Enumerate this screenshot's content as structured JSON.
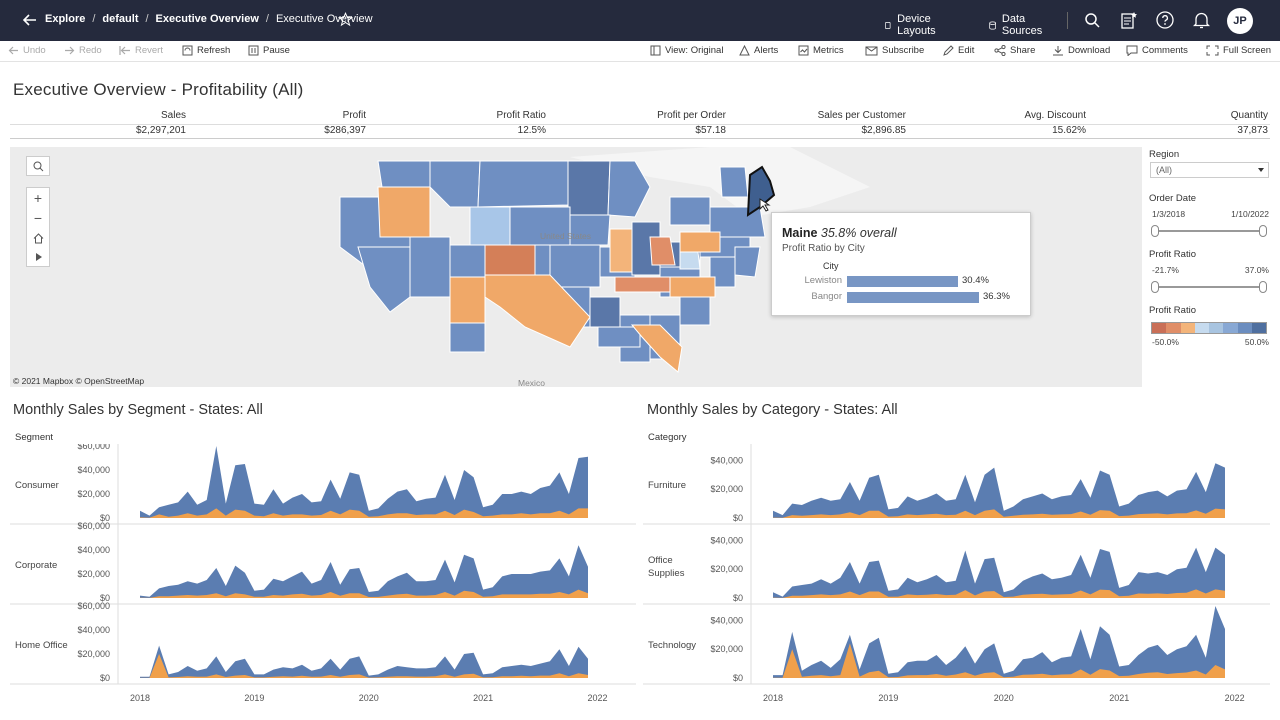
{
  "breadcrumb": {
    "explore": "Explore",
    "project": "default",
    "workbook": "Executive Overview",
    "view": "Executive Overview"
  },
  "header": {
    "device_layouts": "Device Layouts",
    "data_sources": "Data Sources",
    "avatar_initials": "JP"
  },
  "toolbar": {
    "undo": "Undo",
    "redo": "Redo",
    "revert": "Revert",
    "refresh": "Refresh",
    "pause": "Pause",
    "view_original": "View: Original",
    "alerts": "Alerts",
    "metrics": "Metrics",
    "subscribe": "Subscribe",
    "edit": "Edit",
    "share": "Share",
    "download": "Download",
    "comments": "Comments",
    "full_screen": "Full Screen"
  },
  "page_title": "Executive Overview - Profitability (All)",
  "kpis": [
    {
      "label": "Sales",
      "value": "$2,297,201"
    },
    {
      "label": "Profit",
      "value": "$286,397"
    },
    {
      "label": "Profit Ratio",
      "value": "12.5%"
    },
    {
      "label": "Profit per Order",
      "value": "$57.18"
    },
    {
      "label": "Sales per Customer",
      "value": "$2,896.85"
    },
    {
      "label": "Avg. Discount",
      "value": "15.62%"
    },
    {
      "label": "Quantity",
      "value": "37,873"
    }
  ],
  "map": {
    "attribution": "© 2021 Mapbox  © OpenStreetMap",
    "country_label": "United States",
    "mexico_label": "Mexico",
    "tooltip": {
      "state": "Maine",
      "overall": "35.8% overall",
      "subtitle": "Profit Ratio by City",
      "column_header": "City",
      "rows": [
        {
          "city": "Lewiston",
          "value": "30.4%",
          "ratio": 30.4
        },
        {
          "city": "Bangor",
          "value": "36.3%",
          "ratio": 36.3
        }
      ]
    }
  },
  "filters": {
    "region_label": "Region",
    "region_value": "(All)",
    "order_date_label": "Order Date",
    "order_date_min": "1/3/2018",
    "order_date_max": "1/10/2022",
    "profit_ratio_label": "Profit Ratio",
    "profit_ratio_min": "-21.7%",
    "profit_ratio_max": "37.0%",
    "legend_label": "Profit Ratio",
    "legend_min": "-50.0%",
    "legend_max": "50.0%",
    "legend_colors": [
      "#c96f57",
      "#e08e68",
      "#f3b47a",
      "#c6dbef",
      "#a8c4e0",
      "#88a8d4",
      "#6b8dbf",
      "#4f6f9f"
    ]
  },
  "colors": {
    "blue": "#5b7db1",
    "orange": "#f0a04b",
    "accent": "#252a3d"
  },
  "segment_chart": {
    "title": "Monthly Sales by Segment - States: All",
    "header": "Segment",
    "rows": [
      "Consumer",
      "Corporate",
      "Home Office"
    ],
    "y_ticks": [
      "$60,000",
      "$40,000",
      "$20,000",
      "$0"
    ]
  },
  "category_chart": {
    "title": "Monthly Sales by Category - States: All",
    "header": "Category",
    "rows": [
      "Furniture",
      "Office Supplies",
      "Technology"
    ],
    "y_ticks": [
      "$40,000",
      "$20,000",
      "$0"
    ]
  },
  "x_axis": [
    "2018",
    "2019",
    "2020",
    "2021",
    "2022"
  ],
  "chart_data": [
    {
      "type": "area",
      "title": "Monthly Sales by Segment - States: All",
      "x": [
        "2018-01",
        "2018-02",
        "2018-03",
        "2018-04",
        "2018-05",
        "2018-06",
        "2018-07",
        "2018-08",
        "2018-09",
        "2018-10",
        "2018-11",
        "2018-12",
        "2019-01",
        "2019-02",
        "2019-03",
        "2019-04",
        "2019-05",
        "2019-06",
        "2019-07",
        "2019-08",
        "2019-09",
        "2019-10",
        "2019-11",
        "2019-12",
        "2020-01",
        "2020-02",
        "2020-03",
        "2020-04",
        "2020-05",
        "2020-06",
        "2020-07",
        "2020-08",
        "2020-09",
        "2020-10",
        "2020-11",
        "2020-12",
        "2021-01",
        "2021-02",
        "2021-03",
        "2021-04",
        "2021-05",
        "2021-06",
        "2021-07",
        "2021-08",
        "2021-09",
        "2021-10",
        "2021-11",
        "2021-12"
      ],
      "ylim": [
        0,
        60000
      ],
      "panels": [
        {
          "name": "Consumer",
          "series": [
            {
              "name": "Sales",
              "values": [
                6000,
                2000,
                9000,
                11000,
                13000,
                22000,
                11000,
                15000,
                62000,
                12000,
                44000,
                45000,
                12000,
                11000,
                24000,
                12000,
                17000,
                20000,
                13000,
                14000,
                32000,
                16000,
                38000,
                36000,
                6000,
                8000,
                16000,
                22000,
                24000,
                14000,
                16000,
                17000,
                36000,
                15000,
                40000,
                34000,
                9000,
                11000,
                20000,
                20000,
                22000,
                20000,
                25000,
                27000,
                38000,
                20000,
                50000,
                51000
              ]
            },
            {
              "name": "Profit",
              "values": [
                500,
                200,
                3000,
                1000,
                2000,
                4000,
                2000,
                3000,
                8000,
                2000,
                7000,
                6000,
                2000,
                1500,
                4000,
                2000,
                3000,
                3000,
                2000,
                2500,
                6000,
                3000,
                7000,
                6000,
                1000,
                1500,
                3000,
                4000,
                4000,
                2500,
                3000,
                3000,
                6000,
                2500,
                7000,
                5000,
                1500,
                2000,
                3000,
                3000,
                4000,
                3000,
                4000,
                4000,
                6000,
                3000,
                8000,
                8000
              ]
            }
          ]
        },
        {
          "name": "Corporate",
          "series": [
            {
              "name": "Sales",
              "values": [
                2000,
                1000,
                8000,
                10000,
                11000,
                14000,
                12000,
                15000,
                25000,
                10000,
                27000,
                21000,
                6000,
                7000,
                16000,
                14000,
                18000,
                22000,
                12000,
                15000,
                30000,
                11000,
                24000,
                25000,
                5000,
                6000,
                14000,
                18000,
                21000,
                14000,
                14000,
                15000,
                32000,
                13000,
                36000,
                33000,
                7000,
                9000,
                18000,
                20000,
                20000,
                20000,
                22000,
                23000,
                33000,
                18000,
                44000,
                26000
              ]
            },
            {
              "name": "Profit",
              "values": [
                200,
                100,
                1500,
                1500,
                2000,
                2500,
                2000,
                2500,
                4000,
                1500,
                4000,
                3000,
                1000,
                1000,
                2500,
                2000,
                3000,
                3500,
                2000,
                2500,
                5000,
                1800,
                4000,
                4000,
                800,
                900,
                2000,
                3000,
                3500,
                2000,
                2000,
                2500,
                5000,
                2000,
                6000,
                5000,
                1000,
                1500,
                3000,
                3000,
                3000,
                3000,
                3500,
                3500,
                5000,
                3000,
                7000,
                4000
              ]
            }
          ]
        },
        {
          "name": "Home Office",
          "series": [
            {
              "name": "Sales",
              "values": [
                1000,
                1000,
                27000,
                3000,
                5000,
                10000,
                6000,
                8000,
                18000,
                5000,
                14000,
                16000,
                3000,
                3000,
                7000,
                9000,
                8000,
                11000,
                6000,
                8000,
                16000,
                7000,
                16000,
                18000,
                2000,
                3000,
                7000,
                10000,
                9000,
                8000,
                8000,
                9000,
                18000,
                7000,
                20000,
                21000,
                3000,
                4000,
                9000,
                10000,
                11000,
                10000,
                12000,
                14000,
                24000,
                10000,
                26000,
                16000
              ]
            },
            {
              "name": "Profit",
              "values": [
                100,
                100,
                20000,
                500,
                800,
                1500,
                1000,
                1200,
                3000,
                800,
                2000,
                2500,
                500,
                500,
                1000,
                1500,
                1200,
                1800,
                1000,
                1200,
                2500,
                1000,
                2500,
                3000,
                300,
                500,
                1000,
                1500,
                1500,
                1200,
                1200,
                1500,
                3000,
                1000,
                3000,
                3500,
                500,
                600,
                1500,
                1500,
                1800,
                1500,
                2000,
                2000,
                4000,
                1500,
                4000,
                2500
              ]
            }
          ]
        }
      ]
    },
    {
      "type": "area",
      "title": "Monthly Sales by Category - States: All",
      "x": [
        "2018-01",
        "2018-02",
        "2018-03",
        "2018-04",
        "2018-05",
        "2018-06",
        "2018-07",
        "2018-08",
        "2018-09",
        "2018-10",
        "2018-11",
        "2018-12",
        "2019-01",
        "2019-02",
        "2019-03",
        "2019-04",
        "2019-05",
        "2019-06",
        "2019-07",
        "2019-08",
        "2019-09",
        "2019-10",
        "2019-11",
        "2019-12",
        "2020-01",
        "2020-02",
        "2020-03",
        "2020-04",
        "2020-05",
        "2020-06",
        "2020-07",
        "2020-08",
        "2020-09",
        "2020-10",
        "2020-11",
        "2020-12",
        "2021-01",
        "2021-02",
        "2021-03",
        "2021-04",
        "2021-05",
        "2021-06",
        "2021-07",
        "2021-08",
        "2021-09",
        "2021-10",
        "2021-11",
        "2021-12"
      ],
      "ylim": [
        0,
        50000
      ],
      "panels": [
        {
          "name": "Furniture",
          "series": [
            {
              "name": "Sales",
              "values": [
                5000,
                2000,
                10000,
                9000,
                12000,
                14000,
                12000,
                13000,
                25000,
                12000,
                28000,
                30000,
                6000,
                7000,
                15000,
                12000,
                14000,
                17000,
                12000,
                13000,
                30000,
                11000,
                30000,
                35000,
                5000,
                8000,
                13000,
                15000,
                17000,
                13000,
                15000,
                16000,
                27000,
                14000,
                33000,
                30000,
                8000,
                10000,
                16000,
                18000,
                19000,
                15000,
                19000,
                20000,
                32000,
                18000,
                38000,
                35000
              ]
            },
            {
              "name": "Profit",
              "values": [
                300,
                200,
                2000,
                1500,
                2000,
                2500,
                2000,
                2500,
                4000,
                2000,
                5000,
                5000,
                1000,
                1200,
                2500,
                2000,
                2500,
                3000,
                2000,
                2200,
                5000,
                2000,
                5000,
                6000,
                800,
                1500,
                2200,
                2500,
                3000,
                2200,
                2500,
                2700,
                4500,
                2300,
                5500,
                5000,
                1300,
                1700,
                2700,
                3000,
                3200,
                2500,
                3200,
                3300,
                5300,
                3000,
                6500,
                6000
              ]
            }
          ]
        },
        {
          "name": "Office Supplies",
          "series": [
            {
              "name": "Sales",
              "values": [
                4000,
                1000,
                8000,
                9000,
                10000,
                13000,
                10000,
                14000,
                25000,
                10000,
                25000,
                26000,
                5000,
                6000,
                14000,
                11000,
                13000,
                16000,
                11000,
                12000,
                33000,
                10000,
                27000,
                28000,
                4000,
                6000,
                12000,
                15000,
                17000,
                13000,
                14000,
                16000,
                30000,
                14000,
                34000,
                32000,
                7000,
                9000,
                18000,
                17000,
                18000,
                16000,
                20000,
                21000,
                35000,
                18000,
                35000,
                30000
              ]
            },
            {
              "name": "Profit",
              "values": [
                300,
                100,
                1500,
                1500,
                2000,
                2500,
                2000,
                2500,
                4500,
                2000,
                4500,
                4500,
                800,
                1000,
                2500,
                2000,
                2300,
                2800,
                2000,
                2200,
                5500,
                1800,
                4500,
                4800,
                700,
                1000,
                2200,
                2700,
                3000,
                2300,
                2500,
                2800,
                5200,
                2500,
                5800,
                5500,
                1200,
                1600,
                3100,
                3000,
                3200,
                2800,
                3500,
                3600,
                6000,
                3100,
                6000,
                5000
              ]
            }
          ]
        },
        {
          "name": "Technology",
          "series": [
            {
              "name": "Sales",
              "values": [
                2000,
                2000,
                32000,
                5000,
                9000,
                12000,
                7000,
                13000,
                30000,
                6000,
                24000,
                28000,
                3000,
                4000,
                11000,
                12000,
                12000,
                16000,
                9000,
                14000,
                22000,
                10000,
                20000,
                24000,
                3000,
                5000,
                13000,
                14000,
                18000,
                11000,
                14000,
                15000,
                34000,
                13000,
                36000,
                30000,
                8000,
                9000,
                16000,
                21000,
                23000,
                16000,
                20000,
                22000,
                30000,
                14000,
                52000,
                34000
              ]
            },
            {
              "name": "Profit",
              "values": [
                200,
                200,
                20000,
                800,
                1500,
                2000,
                1200,
                2000,
                24000,
                1000,
                4000,
                5000,
                500,
                700,
                1800,
                2000,
                2000,
                2800,
                1500,
                2400,
                4000,
                1700,
                3500,
                4000,
                500,
                900,
                2200,
                2400,
                3000,
                1900,
                2400,
                2600,
                6000,
                2200,
                6200,
                5200,
                1300,
                1600,
                2800,
                3600,
                4000,
                2800,
                3400,
                3800,
                5200,
                2400,
                9000,
                6000
              ]
            }
          ]
        }
      ]
    }
  ]
}
